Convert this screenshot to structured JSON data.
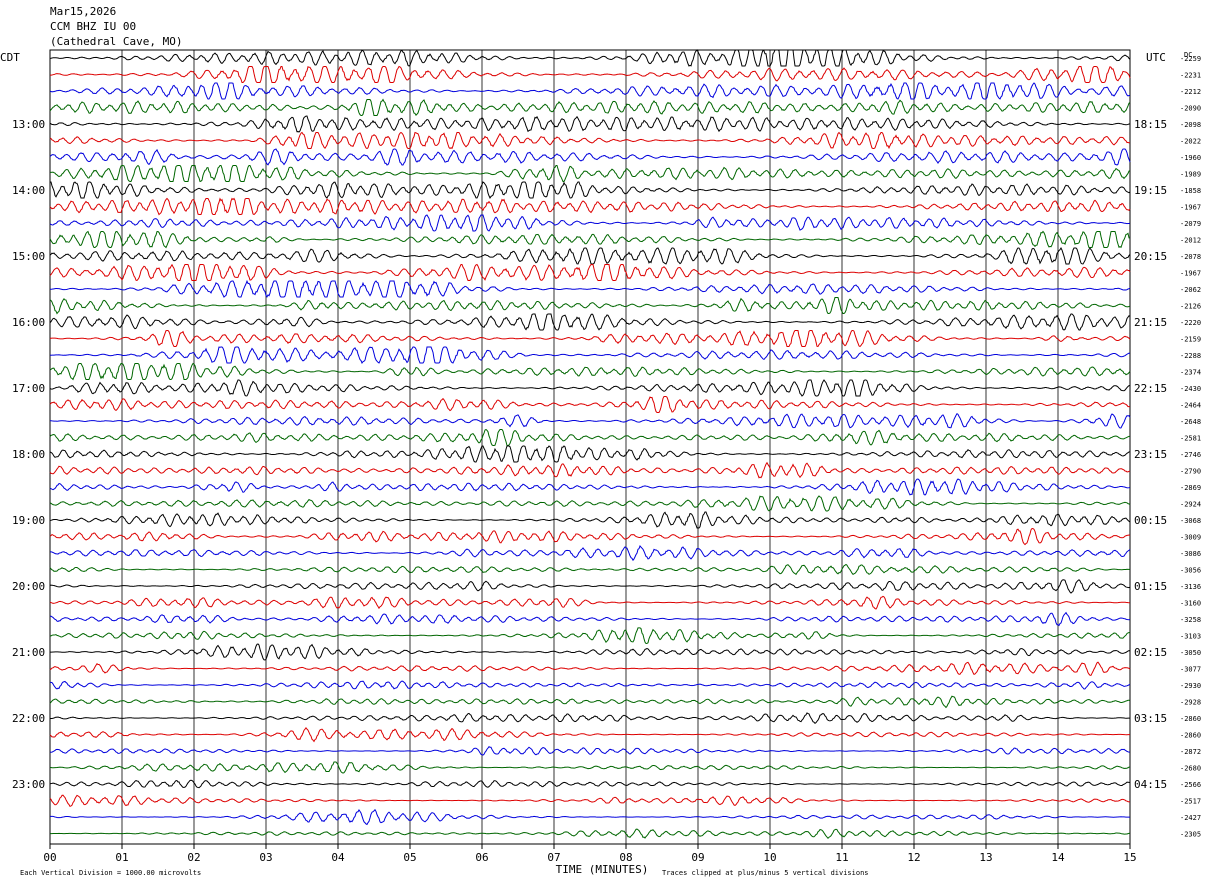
{
  "header": {
    "date": "Mar15,2026",
    "station": "CCM BHZ IU 00",
    "location": "(Cathedral Cave, MO)"
  },
  "chart_data": {
    "type": "line",
    "title": "",
    "xlabel": "TIME (MINUTES)",
    "left_timezone": "CDT",
    "right_timezone": "UTC",
    "right_column_header": "DC",
    "x_ticks": [
      "00",
      "01",
      "02",
      "03",
      "04",
      "05",
      "06",
      "07",
      "08",
      "09",
      "10",
      "11",
      "12",
      "13",
      "14",
      "15"
    ],
    "xlim": [
      0,
      15
    ],
    "left_hour_labels": [
      "13:00",
      "14:00",
      "15:00",
      "16:00",
      "17:00",
      "18:00",
      "19:00",
      "20:00",
      "21:00",
      "22:00",
      "23:00"
    ],
    "right_hour_labels": [
      "18:15",
      "19:15",
      "20:15",
      "21:15",
      "22:15",
      "23:15",
      "00:15",
      "01:15",
      "02:15",
      "03:15",
      "04:15"
    ],
    "trace_count": 48,
    "trace_colors": [
      "#000000",
      "#dd0000",
      "#0000dd",
      "#006600"
    ],
    "dc_offsets": [
      "-2259",
      "-2231",
      "-2212",
      "-2090",
      "-2098",
      "-2022",
      "-1960",
      "-1989",
      "-1858",
      "-1967",
      "-2079",
      "-2012",
      "-2078",
      "-1967",
      "-2062",
      "-2126",
      "-2220",
      "-2159",
      "-2288",
      "-2374",
      "-2430",
      "-2464",
      "-2648",
      "-2581",
      "-2746",
      "-2790",
      "-2869",
      "-2924",
      "-3068",
      "-3009",
      "-3086",
      "-3056",
      "-3136",
      "-3160",
      "-3258",
      "-3103",
      "-3050",
      "-3077",
      "-2930",
      "-2928",
      "-2860",
      "-2860",
      "-2872",
      "-2680",
      "-2566",
      "-2517",
      "-2427",
      "-2305"
    ],
    "footer_left": "Each Vertical Division = 1000.00 microvolts",
    "footer_right": "Traces clipped at plus/minus 5 vertical divisions"
  }
}
